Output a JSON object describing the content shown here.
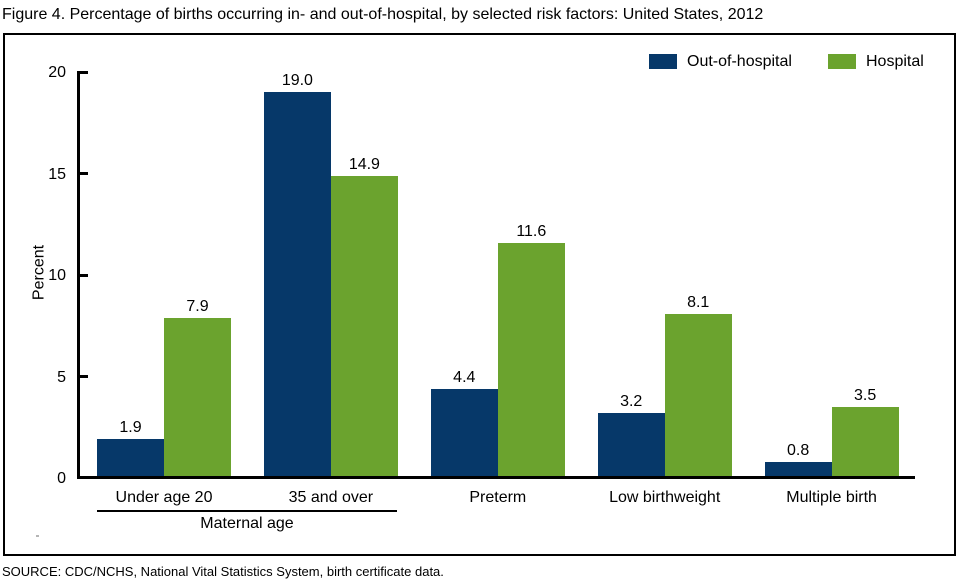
{
  "figure": {
    "title": "Figure 4. Percentage of births occurring in- and out-of-hospital, by selected risk factors: United States, 2012",
    "source": "SOURCE: CDC/NCHS, National Vital Statistics System, birth certificate data."
  },
  "chart_data": {
    "type": "bar",
    "title": "Figure 4. Percentage of births occurring in- and out-of-hospital, by selected risk factors: United States, 2012",
    "categories": [
      "Under age 20",
      "35 and over",
      "Preterm",
      "Low birthweight",
      "Multiple birth"
    ],
    "series": [
      {
        "name": "Out-of-hospital",
        "color": "#063869",
        "values": [
          1.9,
          19.0,
          4.4,
          3.2,
          0.8
        ]
      },
      {
        "name": "Hospital",
        "color": "#6ba32e",
        "values": [
          7.9,
          14.9,
          11.6,
          8.1,
          3.5
        ]
      }
    ],
    "value_labels": [
      "1.9",
      "7.9",
      "19.0",
      "14.9",
      "4.4",
      "11.6",
      "3.2",
      "8.1",
      "0.8",
      "3.5"
    ],
    "xlabel": "",
    "ylabel": "Percent",
    "ylim": [
      0,
      20
    ],
    "yticks": [
      0,
      5,
      10,
      15,
      20
    ],
    "grid": false,
    "legend_position": "top-right",
    "group_annotation": {
      "label": "Maternal age",
      "spans_categories": [
        "Under age 20",
        "35 and over"
      ]
    }
  }
}
